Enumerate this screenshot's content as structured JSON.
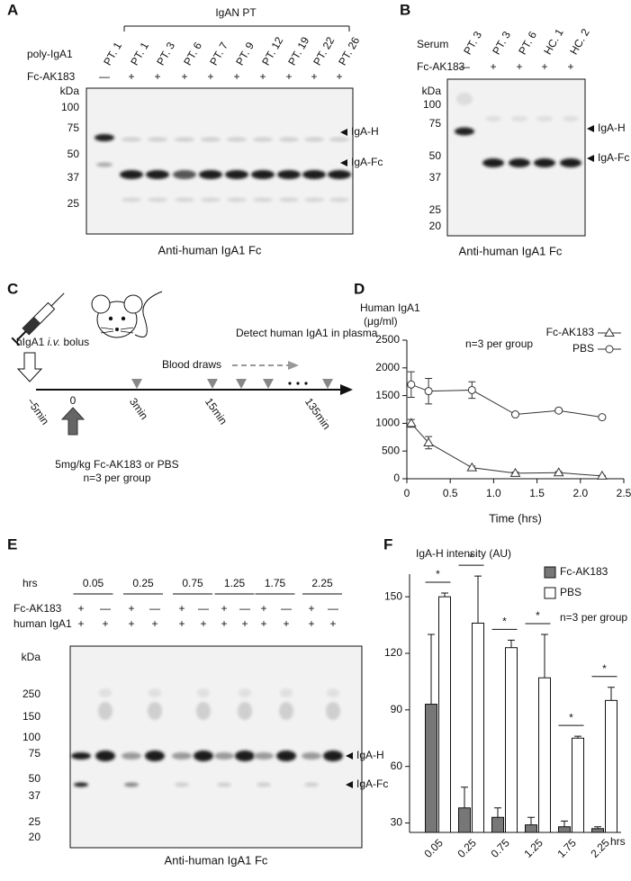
{
  "panel_a": {
    "label": "A",
    "group": "IgAN PT",
    "row_labels": [
      "poly-IgA1",
      "Fc-AK183"
    ],
    "lanes": [
      "PT. 1",
      "PT. 1",
      "PT. 3",
      "PT. 6",
      "PT. 7",
      "PT. 9",
      "PT. 12",
      "PT. 19",
      "PT. 22",
      "PT. 26"
    ],
    "fc_signs": [
      "—",
      "+",
      "+",
      "+",
      "+",
      "+",
      "+",
      "+",
      "+",
      "+"
    ],
    "kda": "kDa",
    "markers": [
      100,
      75,
      50,
      37,
      25
    ],
    "bands": [
      "IgA-H",
      "IgA-Fc"
    ],
    "caption": "Anti-human IgA1 Fc"
  },
  "panel_b": {
    "label": "B",
    "row_labels": [
      "Serum",
      "Fc-AK183"
    ],
    "lanes": [
      "PT. 3",
      "PT. 3",
      "PT. 6",
      "HC. 1",
      "HC. 2"
    ],
    "fc_signs": [
      "—",
      "+",
      "+",
      "+",
      "+"
    ],
    "kda": "kDa",
    "markers": [
      100,
      75,
      50,
      37,
      25,
      20
    ],
    "bands": [
      "IgA-H",
      "IgA-Fc"
    ],
    "caption": "Anti-human IgA1 Fc"
  },
  "panel_c": {
    "label": "C",
    "bolus": [
      "hIgA1 ",
      "i.v.",
      " bolus"
    ],
    "detect": "Detect human IgA1 in plasma",
    "blood_draws": "Blood draws",
    "times": [
      "−5min",
      "0",
      "3min",
      "15min",
      "135min"
    ],
    "dose": "5mg/kg Fc-AK183 or PBS",
    "n": "n=3 per group"
  },
  "panel_e": {
    "label": "E",
    "hrs": "hrs",
    "times": [
      "0.05",
      "0.25",
      "0.75",
      "1.25",
      "1.75",
      "2.25"
    ],
    "row_labels": [
      "Fc-AK183",
      "human IgA1"
    ],
    "fc_signs": [
      "+",
      "—",
      "+",
      "—",
      "+",
      "—",
      "+",
      "—",
      "+",
      "—",
      "+",
      "—"
    ],
    "iga_signs": [
      "+",
      "+",
      "+",
      "+",
      "+",
      "+",
      "+",
      "+",
      "+",
      "+",
      "+",
      "+"
    ],
    "kda": "kDa",
    "markers": [
      250,
      150,
      100,
      75,
      50,
      37,
      25,
      20
    ],
    "bands": [
      "IgA-H",
      "IgA-Fc"
    ],
    "caption": "Anti-human IgA1 Fc"
  },
  "chart_data": [
    {
      "type": "line",
      "label": "D",
      "ylabel": [
        "Human IgA1",
        "(μg/ml)"
      ],
      "xlabel": "Time (hrs)",
      "annotation": "n=3 per group",
      "x": [
        0.05,
        0.25,
        0.75,
        1.25,
        1.75,
        2.25
      ],
      "series": [
        {
          "name": "Fc-AK183",
          "color": "#333333",
          "marker": "triangle",
          "values": [
            1000,
            650,
            200,
            100,
            110,
            50
          ],
          "errors": [
            70,
            110,
            30,
            20,
            20,
            10
          ]
        },
        {
          "name": "PBS",
          "color": "#333333",
          "marker": "circle",
          "values": [
            1700,
            1580,
            1600,
            1160,
            1230,
            1110
          ],
          "errors": [
            230,
            230,
            150,
            30,
            30,
            30
          ]
        }
      ],
      "xlim": [
        0,
        2.5
      ],
      "xticks": [
        0,
        0.5,
        {
          "value": 1,
          "label": "1.0"
        },
        1.5,
        {
          "value": 2,
          "label": "2.0"
        },
        2.5
      ],
      "ylim": [
        0,
        2500
      ],
      "yticks": [
        0,
        500,
        1000,
        1500,
        2000,
        2500
      ],
      "legend": "upper right"
    },
    {
      "type": "bar",
      "label": "F",
      "ylabel": "IgA-H intensity (AU)",
      "xlabel": "hrs",
      "annotation": "n=3 per group",
      "categories": [
        "0.05",
        "0.25",
        "0.75",
        "1.25",
        "1.75",
        "2.25"
      ],
      "series": [
        {
          "name": "Fc-AK183",
          "color": "#777777",
          "values": [
            93,
            38,
            33,
            29,
            28,
            27
          ],
          "errors": [
            37,
            11,
            5,
            4,
            3,
            1
          ]
        },
        {
          "name": "PBS",
          "color": "#ffffff",
          "values": [
            150,
            136,
            123,
            107,
            75,
            95
          ],
          "errors": [
            2,
            25,
            4,
            23,
            1,
            7
          ]
        }
      ],
      "significance": [
        "*",
        "*",
        "*",
        "*",
        "*",
        "*"
      ],
      "ylim": [
        25,
        162
      ],
      "yticks": [
        30,
        60,
        90,
        120,
        150
      ],
      "legend": "upper right"
    }
  ]
}
